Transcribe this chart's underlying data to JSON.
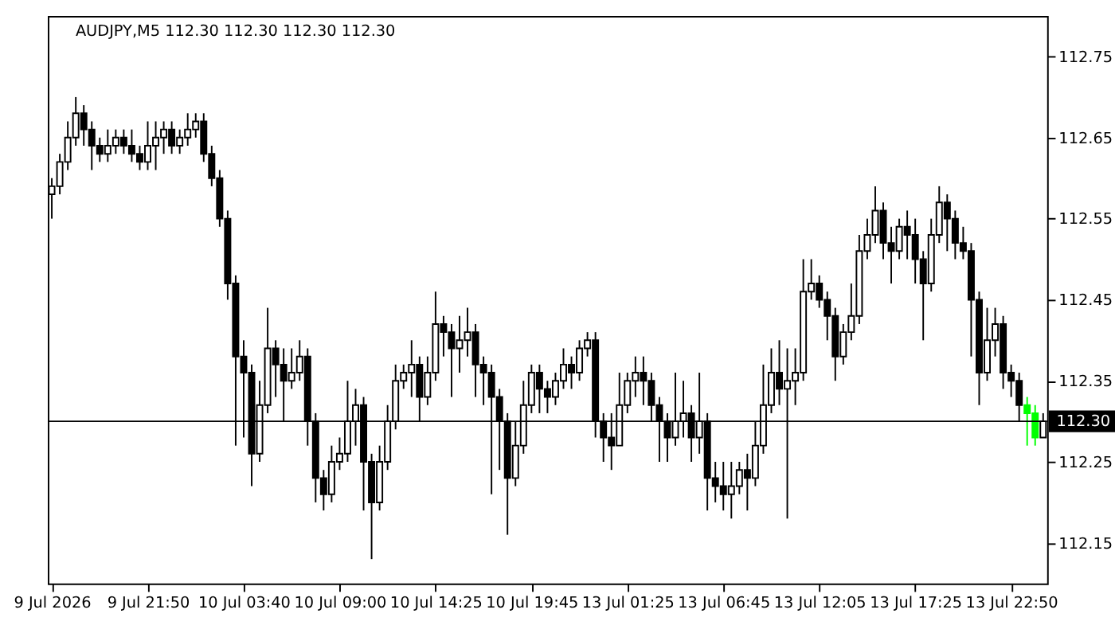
{
  "chart_data": {
    "type": "candlestick",
    "title": "AUDJPY,M5  112.30 112.30 112.30 112.30",
    "categories": [
      "9 Jul 2026",
      null,
      null,
      null,
      null,
      null,
      null,
      null,
      null,
      null,
      null,
      null,
      "9 Jul 21:50",
      null,
      null,
      null,
      null,
      null,
      null,
      null,
      null,
      null,
      null,
      null,
      "10 Jul 03:40",
      null,
      null,
      null,
      null,
      null,
      null,
      null,
      null,
      null,
      null,
      null,
      "10 Jul 09:00",
      null,
      null,
      null,
      null,
      null,
      null,
      null,
      null,
      null,
      null,
      null,
      "10 Jul 14:25",
      null,
      null,
      null,
      null,
      null,
      null,
      null,
      null,
      null,
      null,
      null,
      "10 Jul 19:45",
      null,
      null,
      null,
      null,
      null,
      null,
      null,
      null,
      null,
      null,
      null,
      "13 Jul 01:25",
      null,
      null,
      null,
      null,
      null,
      null,
      null,
      null,
      null,
      null,
      null,
      "13 Jul 06:45",
      null,
      null,
      null,
      null,
      null,
      null,
      null,
      null,
      null,
      null,
      null,
      "13 Jul 12:05",
      null,
      null,
      null,
      null,
      null,
      null,
      null,
      null,
      null,
      null,
      null,
      "13 Jul 17:25",
      null,
      null,
      null,
      null,
      null,
      null,
      null,
      null,
      null,
      null,
      null,
      "13 Jul 22:50",
      null,
      null,
      null,
      null
    ],
    "ylim": [
      112.1,
      112.8
    ],
    "yticks": [
      112.15,
      112.25,
      112.35,
      112.45,
      112.55,
      112.65,
      112.75
    ],
    "grid": false,
    "ref_lines": [
      {
        "axis": "y",
        "value": 112.3,
        "label": "112.30",
        "color": "#000000"
      }
    ],
    "series": [
      {
        "color": "#000000",
        "ohlc": [
          [
            112.58,
            112.6,
            112.55,
            112.59
          ],
          [
            112.59,
            112.63,
            112.58,
            112.62
          ],
          [
            112.62,
            112.67,
            112.61,
            112.65
          ],
          [
            112.65,
            112.7,
            112.64,
            112.68
          ],
          [
            112.68,
            112.69,
            112.64,
            112.66
          ],
          [
            112.66,
            112.67,
            112.61,
            112.64
          ],
          [
            112.64,
            112.65,
            112.62,
            112.63
          ],
          [
            112.63,
            112.66,
            112.62,
            112.64
          ],
          [
            112.64,
            112.66,
            112.63,
            112.65
          ],
          [
            112.65,
            112.66,
            112.63,
            112.64
          ],
          [
            112.64,
            112.66,
            112.62,
            112.63
          ],
          [
            112.63,
            112.64,
            112.61,
            112.62
          ],
          [
            112.62,
            112.67,
            112.61,
            112.64
          ],
          [
            112.64,
            112.67,
            112.61,
            112.65
          ],
          [
            112.65,
            112.67,
            112.63,
            112.66
          ],
          [
            112.66,
            112.67,
            112.63,
            112.64
          ],
          [
            112.64,
            112.66,
            112.63,
            112.65
          ],
          [
            112.65,
            112.68,
            112.64,
            112.66
          ],
          [
            112.66,
            112.68,
            112.65,
            112.67
          ],
          [
            112.67,
            112.68,
            112.62,
            112.63
          ],
          [
            112.63,
            112.64,
            112.59,
            112.6
          ],
          [
            112.6,
            112.61,
            112.54,
            112.55
          ],
          [
            112.55,
            112.56,
            112.45,
            112.47
          ],
          [
            112.47,
            112.48,
            112.27,
            112.38
          ],
          [
            112.38,
            112.4,
            112.28,
            112.36
          ],
          [
            112.36,
            112.37,
            112.22,
            112.26
          ],
          [
            112.26,
            112.35,
            112.25,
            112.32
          ],
          [
            112.32,
            112.44,
            112.31,
            112.39
          ],
          [
            112.39,
            112.4,
            112.33,
            112.37
          ],
          [
            112.37,
            112.39,
            112.3,
            112.35
          ],
          [
            112.35,
            112.39,
            112.34,
            112.36
          ],
          [
            112.36,
            112.4,
            112.35,
            112.38
          ],
          [
            112.38,
            112.39,
            112.27,
            112.3
          ],
          [
            112.3,
            112.31,
            112.2,
            112.23
          ],
          [
            112.23,
            112.24,
            112.19,
            112.21
          ],
          [
            112.21,
            112.27,
            112.2,
            112.25
          ],
          [
            112.25,
            112.28,
            112.24,
            112.26
          ],
          [
            112.26,
            112.35,
            112.25,
            112.3
          ],
          [
            112.3,
            112.34,
            112.27,
            112.32
          ],
          [
            112.32,
            112.33,
            112.19,
            112.25
          ],
          [
            112.25,
            112.26,
            112.13,
            112.2
          ],
          [
            112.2,
            112.27,
            112.19,
            112.25
          ],
          [
            112.25,
            112.32,
            112.24,
            112.3
          ],
          [
            112.3,
            112.37,
            112.29,
            112.35
          ],
          [
            112.35,
            112.37,
            112.34,
            112.36
          ],
          [
            112.36,
            112.4,
            112.33,
            112.37
          ],
          [
            112.37,
            112.38,
            112.3,
            112.33
          ],
          [
            112.33,
            112.38,
            112.32,
            112.36
          ],
          [
            112.36,
            112.46,
            112.35,
            112.42
          ],
          [
            112.42,
            112.43,
            112.38,
            112.41
          ],
          [
            112.41,
            112.42,
            112.33,
            112.39
          ],
          [
            112.39,
            112.43,
            112.36,
            112.4
          ],
          [
            112.4,
            112.44,
            112.38,
            112.41
          ],
          [
            112.41,
            112.42,
            112.33,
            112.37
          ],
          [
            112.37,
            112.38,
            112.32,
            112.36
          ],
          [
            112.36,
            112.37,
            112.21,
            112.33
          ],
          [
            112.33,
            112.34,
            112.24,
            112.3
          ],
          [
            112.3,
            112.31,
            112.16,
            112.23
          ],
          [
            112.23,
            112.3,
            112.22,
            112.27
          ],
          [
            112.27,
            112.35,
            112.26,
            112.32
          ],
          [
            112.32,
            112.37,
            112.31,
            112.36
          ],
          [
            112.36,
            112.37,
            112.31,
            112.34
          ],
          [
            112.34,
            112.35,
            112.31,
            112.33
          ],
          [
            112.33,
            112.36,
            112.32,
            112.35
          ],
          [
            112.35,
            112.39,
            112.34,
            112.37
          ],
          [
            112.37,
            112.38,
            112.34,
            112.36
          ],
          [
            112.36,
            112.4,
            112.35,
            112.39
          ],
          [
            112.39,
            112.41,
            112.38,
            112.4
          ],
          [
            112.4,
            112.41,
            112.28,
            112.3
          ],
          [
            112.3,
            112.31,
            112.25,
            112.28
          ],
          [
            112.28,
            112.31,
            112.24,
            112.27
          ],
          [
            112.27,
            112.36,
            112.27,
            112.32
          ],
          [
            112.32,
            112.36,
            112.31,
            112.35
          ],
          [
            112.35,
            112.38,
            112.33,
            112.36
          ],
          [
            112.36,
            112.38,
            112.32,
            112.35
          ],
          [
            112.35,
            112.36,
            112.3,
            112.32
          ],
          [
            112.32,
            112.33,
            112.25,
            112.3
          ],
          [
            112.3,
            112.31,
            112.25,
            112.28
          ],
          [
            112.28,
            112.36,
            112.27,
            112.3
          ],
          [
            112.3,
            112.35,
            112.28,
            112.31
          ],
          [
            112.31,
            112.32,
            112.25,
            112.28
          ],
          [
            112.28,
            112.36,
            112.26,
            112.3
          ],
          [
            112.3,
            112.31,
            112.19,
            112.23
          ],
          [
            112.23,
            112.25,
            112.2,
            112.22
          ],
          [
            112.22,
            112.25,
            112.19,
            112.21
          ],
          [
            112.21,
            112.25,
            112.18,
            112.22
          ],
          [
            112.22,
            112.25,
            112.21,
            112.24
          ],
          [
            112.24,
            112.26,
            112.19,
            112.23
          ],
          [
            112.23,
            112.3,
            112.22,
            112.27
          ],
          [
            112.27,
            112.37,
            112.26,
            112.32
          ],
          [
            112.32,
            112.39,
            112.31,
            112.36
          ],
          [
            112.36,
            112.4,
            112.32,
            112.34
          ],
          [
            112.34,
            112.39,
            112.18,
            112.35
          ],
          [
            112.35,
            112.39,
            112.32,
            112.36
          ],
          [
            112.36,
            112.5,
            112.35,
            112.46
          ],
          [
            112.46,
            112.5,
            112.45,
            112.47
          ],
          [
            112.47,
            112.48,
            112.44,
            112.45
          ],
          [
            112.45,
            112.46,
            112.4,
            112.43
          ],
          [
            112.43,
            112.44,
            112.35,
            112.38
          ],
          [
            112.38,
            112.42,
            112.37,
            112.41
          ],
          [
            112.41,
            112.47,
            112.4,
            112.43
          ],
          [
            112.43,
            112.53,
            112.42,
            112.51
          ],
          [
            112.51,
            112.55,
            112.5,
            112.53
          ],
          [
            112.53,
            112.59,
            112.52,
            112.56
          ],
          [
            112.56,
            112.57,
            112.5,
            112.52
          ],
          [
            112.52,
            112.54,
            112.47,
            112.51
          ],
          [
            112.51,
            112.55,
            112.5,
            112.54
          ],
          [
            112.54,
            112.56,
            112.5,
            112.53
          ],
          [
            112.53,
            112.55,
            112.47,
            112.5
          ],
          [
            112.5,
            112.51,
            112.4,
            112.47
          ],
          [
            112.47,
            112.55,
            112.46,
            112.53
          ],
          [
            112.53,
            112.59,
            112.52,
            112.57
          ],
          [
            112.57,
            112.58,
            112.51,
            112.55
          ],
          [
            112.55,
            112.56,
            112.5,
            112.52
          ],
          [
            112.52,
            112.54,
            112.5,
            112.51
          ],
          [
            112.51,
            112.52,
            112.38,
            112.45
          ],
          [
            112.45,
            112.46,
            112.32,
            112.36
          ],
          [
            112.36,
            112.44,
            112.35,
            112.4
          ],
          [
            112.4,
            112.44,
            112.38,
            112.42
          ],
          [
            112.42,
            112.43,
            112.34,
            112.36
          ],
          [
            112.36,
            112.37,
            112.33,
            112.35
          ],
          [
            112.35,
            112.36,
            112.3,
            112.32
          ],
          null,
          null,
          [
            112.28,
            112.31,
            112.28,
            112.3
          ]
        ]
      },
      {
        "color": "#00ff00",
        "ohlc": [
          null,
          null,
          null,
          null,
          null,
          null,
          null,
          null,
          null,
          null,
          null,
          null,
          null,
          null,
          null,
          null,
          null,
          null,
          null,
          null,
          null,
          null,
          null,
          null,
          null,
          null,
          null,
          null,
          null,
          null,
          null,
          null,
          null,
          null,
          null,
          null,
          null,
          null,
          null,
          null,
          null,
          null,
          null,
          null,
          null,
          null,
          null,
          null,
          null,
          null,
          null,
          null,
          null,
          null,
          null,
          null,
          null,
          null,
          null,
          null,
          null,
          null,
          null,
          null,
          null,
          null,
          null,
          null,
          null,
          null,
          null,
          null,
          null,
          null,
          null,
          null,
          null,
          null,
          null,
          null,
          null,
          null,
          null,
          null,
          null,
          null,
          null,
          null,
          null,
          null,
          null,
          null,
          null,
          null,
          null,
          null,
          null,
          null,
          null,
          null,
          null,
          null,
          null,
          null,
          null,
          null,
          null,
          null,
          null,
          null,
          null,
          null,
          null,
          null,
          null,
          null,
          null,
          null,
          null,
          null,
          null,
          null,
          [
            112.32,
            112.33,
            112.27,
            112.31
          ],
          [
            112.31,
            112.32,
            112.27,
            112.28
          ],
          null
        ]
      }
    ]
  }
}
